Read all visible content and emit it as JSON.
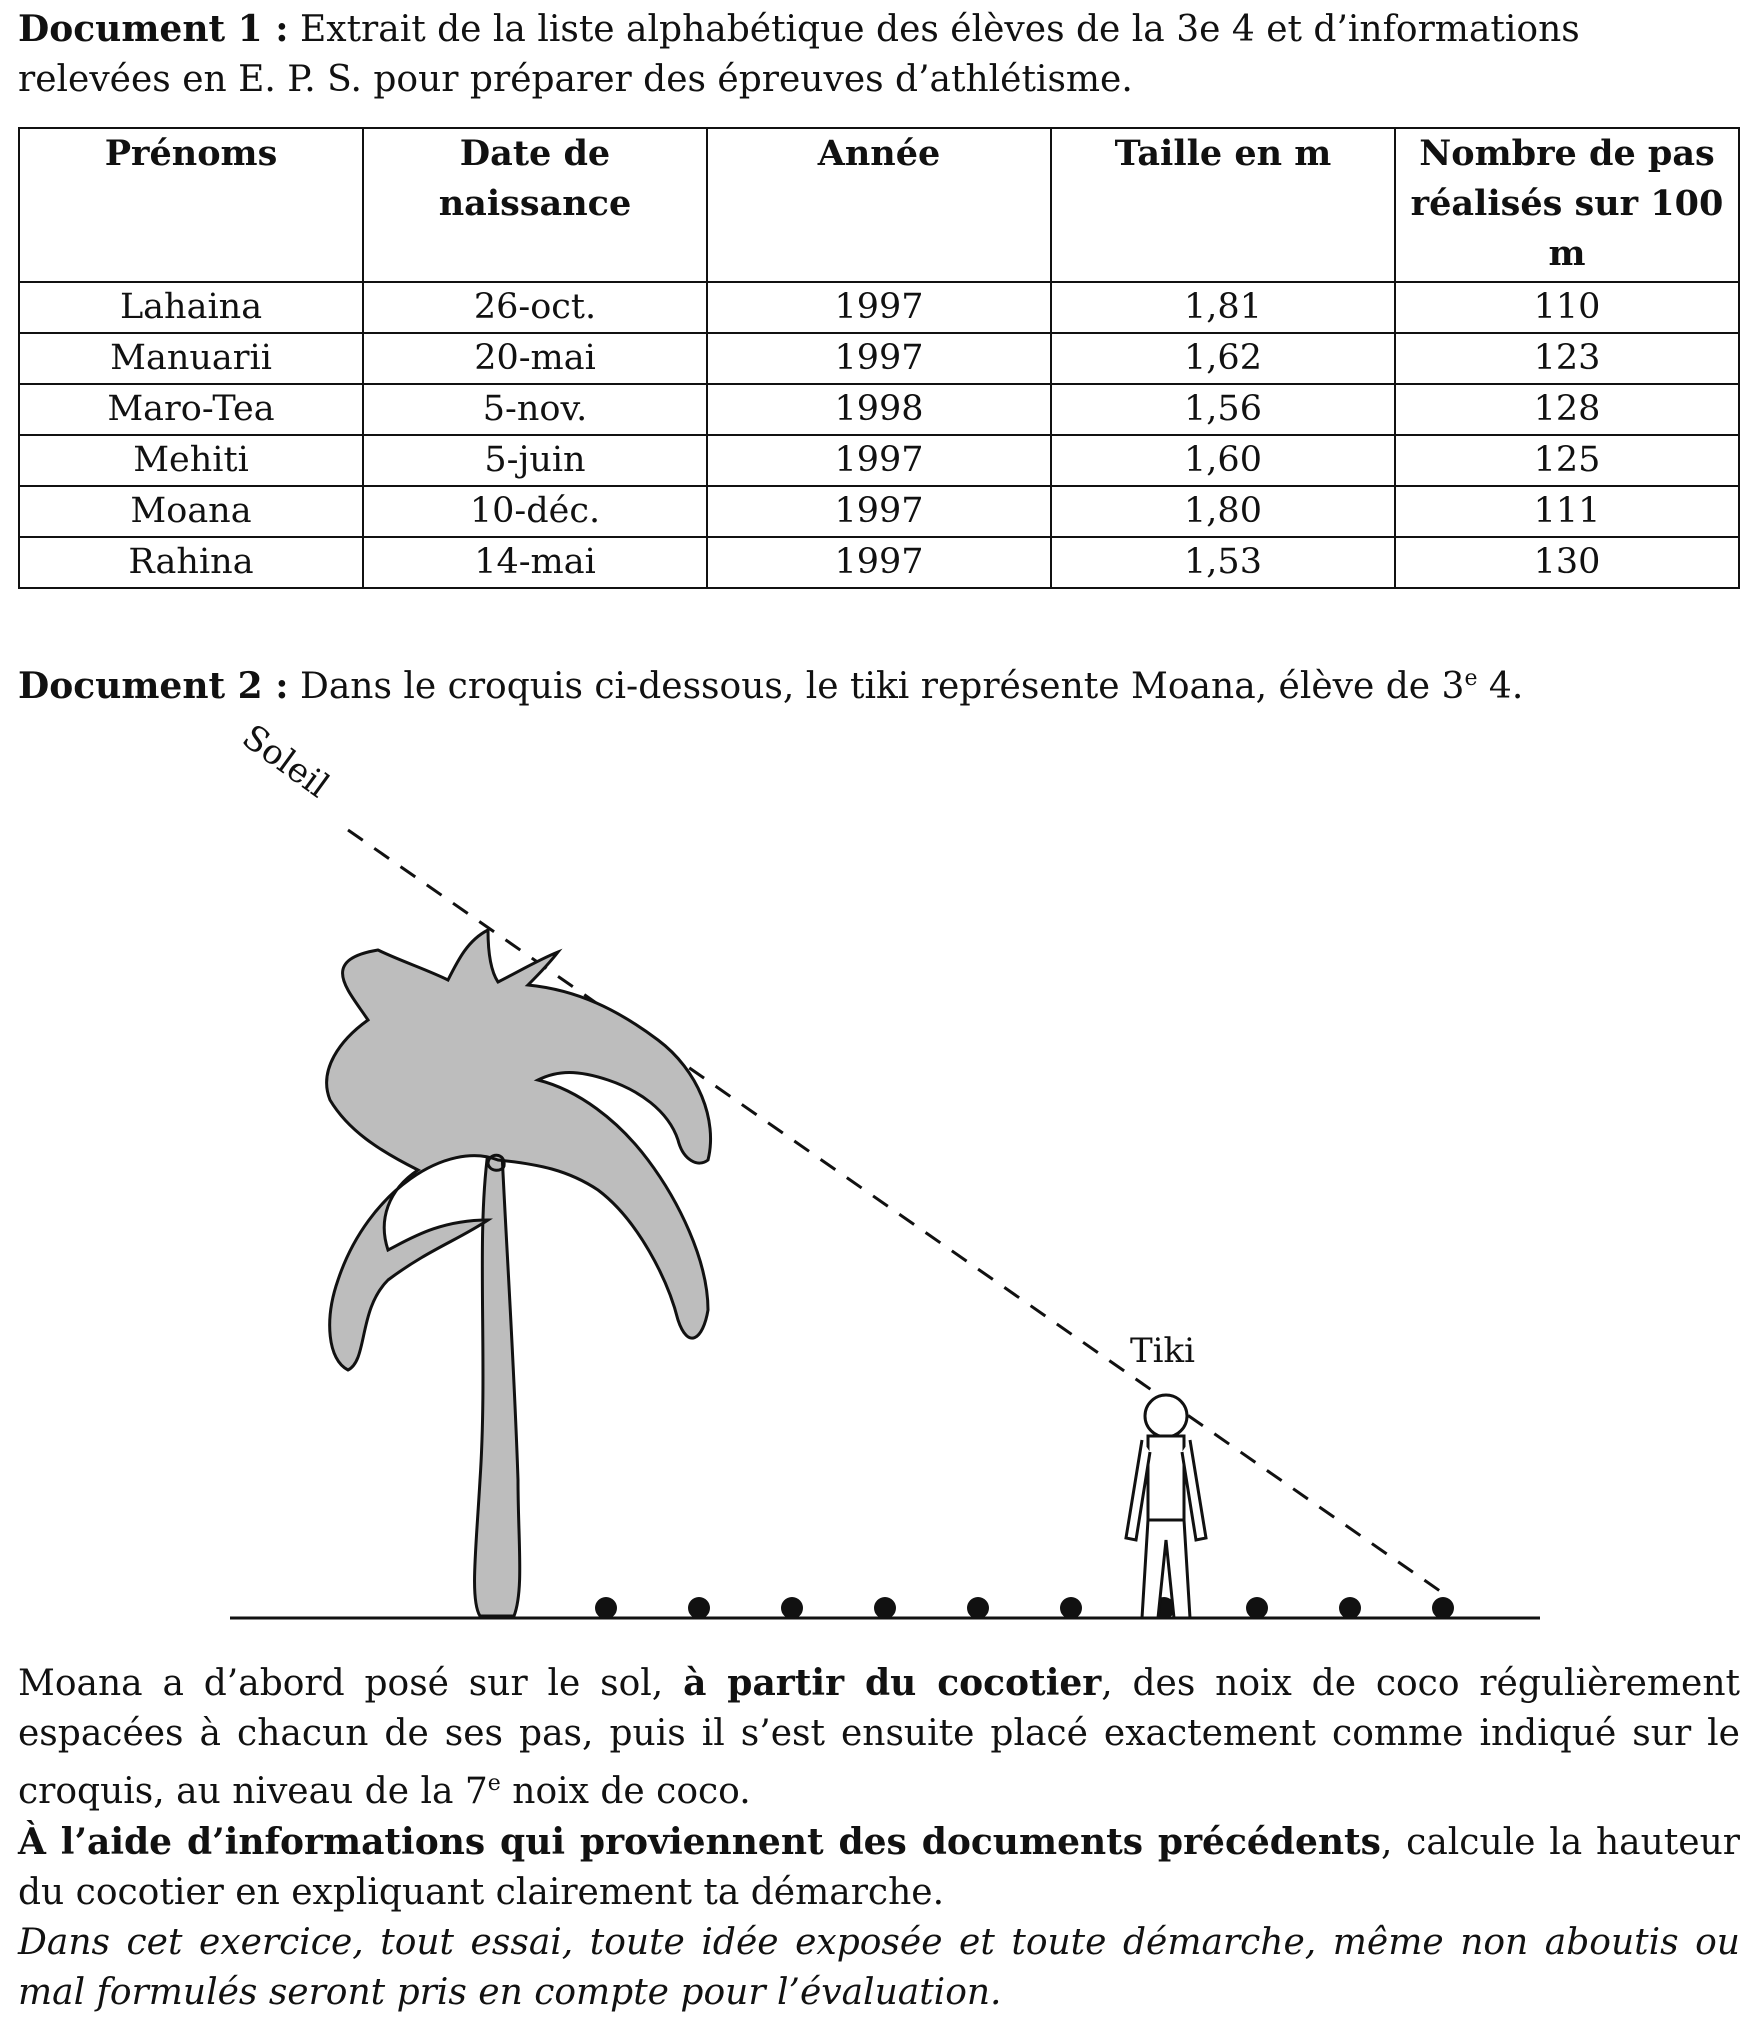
{
  "doc1": {
    "label": "Document 1 :",
    "text": "Extrait de la liste alphabétique des élèves de la 3e 4 et d’informations relevées en E. P. S. pour préparer des épreuves d’athlétisme."
  },
  "table": {
    "headers": [
      "Prénoms",
      "Date de naissance",
      "Année",
      "Taille en m",
      "Nombre de pas réalisés sur 100 m"
    ],
    "rows": [
      [
        "Lahaina",
        "26-oct.",
        "1997",
        "1,81",
        "110"
      ],
      [
        "Manuarii",
        "20-mai",
        "1997",
        "1,62",
        "123"
      ],
      [
        "Maro-Tea",
        "5-nov.",
        "1998",
        "1,56",
        "128"
      ],
      [
        "Mehiti",
        "5-juin",
        "1997",
        "1,60",
        "125"
      ],
      [
        "Moana",
        "10-déc.",
        "1997",
        "1,80",
        "111"
      ],
      [
        "Rahina",
        "14-mai",
        "1997",
        "1,53",
        "130"
      ]
    ]
  },
  "doc2": {
    "label": "Document 2 :",
    "text_before": "Dans le croquis ci-dessous, le tiki représente Moana, élève de 3",
    "sup": "e",
    "text_after": " 4."
  },
  "sketch": {
    "sun_label": "Soleil",
    "tiki_label": "Tiki",
    "coconut_count": 10,
    "colors": {
      "tree_fill": "#bdbdbd",
      "stroke": "#111111"
    }
  },
  "instructions": {
    "p1_a": "Moana a d’abord posé sur le sol, ",
    "p1_bold": "à partir du cocotier",
    "p1_b": ", des noix de coco régulièrement espacées à chacun de ses pas, puis il s’est ensuite placé exactement comme indiqué sur le croquis, au niveau de la 7",
    "p1_sup": "e",
    "p1_c": " noix de coco.",
    "p2_bold": "À l’aide d’informations qui proviennent des documents précédents",
    "p2_rest": ", calcule la hauteur du cocotier en expliquant clairement ta démarche.",
    "p3_italic": "Dans cet exercice, tout essai, toute idée exposée et toute démarche, même non aboutis ou mal formulés seront pris en compte pour l’évaluation."
  }
}
